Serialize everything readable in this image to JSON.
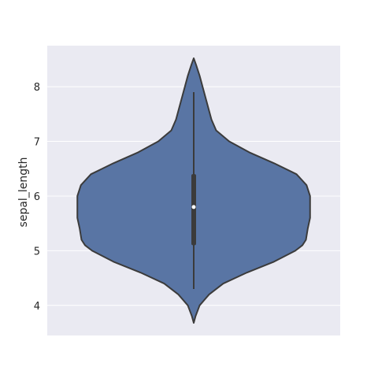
{
  "chart_data": {
    "type": "violin",
    "title": "",
    "xlabel": "",
    "ylabel": "sepal_length",
    "ylim": [
      3.45,
      8.75
    ],
    "yticks": [
      4,
      5,
      6,
      7,
      8
    ],
    "grid": true,
    "colors": {
      "background": "#eaeaf2",
      "grid": "#ffffff",
      "violin_fill": "#5975a4",
      "violin_edge": "#3b3b3b",
      "box": "#3b3b3b",
      "median_dot": "#ffffff"
    },
    "violin": {
      "density_profile": [
        [
          3.68,
          0.0
        ],
        [
          3.8,
          0.015
        ],
        [
          4.0,
          0.05
        ],
        [
          4.2,
          0.13
        ],
        [
          4.4,
          0.25
        ],
        [
          4.6,
          0.45
        ],
        [
          4.8,
          0.68
        ],
        [
          5.0,
          0.86
        ],
        [
          5.1,
          0.92
        ],
        [
          5.2,
          0.95
        ],
        [
          5.4,
          0.965
        ],
        [
          5.6,
          0.985
        ],
        [
          5.8,
          0.985
        ],
        [
          6.0,
          0.985
        ],
        [
          6.2,
          0.955
        ],
        [
          6.4,
          0.87
        ],
        [
          6.6,
          0.68
        ],
        [
          6.8,
          0.47
        ],
        [
          7.0,
          0.3
        ],
        [
          7.2,
          0.19
        ],
        [
          7.4,
          0.15
        ],
        [
          7.6,
          0.125
        ],
        [
          7.8,
          0.1
        ],
        [
          8.0,
          0.075
        ],
        [
          8.2,
          0.05
        ],
        [
          8.4,
          0.02
        ],
        [
          8.52,
          0.0
        ]
      ],
      "min": 4.3,
      "q1": 5.1,
      "median": 5.8,
      "q3": 6.4,
      "max": 7.9
    }
  }
}
